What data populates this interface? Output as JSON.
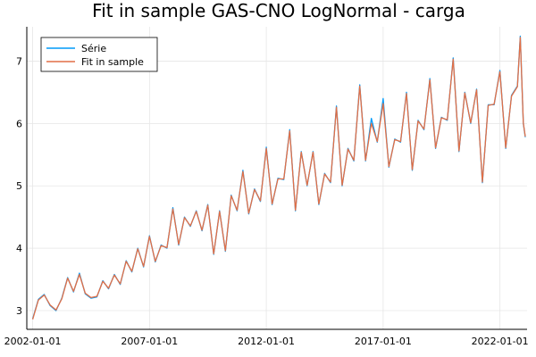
{
  "chart_data": {
    "type": "line",
    "title": "Fit in sample GAS-CNO LogNormal - carga",
    "xlabel": "",
    "ylabel": "",
    "x_range": [
      "2001-10-01",
      "2023-03-01"
    ],
    "ylim": [
      2.7,
      7.55
    ],
    "x_ticks": [
      "2002-01-01",
      "2007-01-01",
      "2012-01-01",
      "2017-01-01",
      "2022-01-01"
    ],
    "y_ticks": [
      3,
      4,
      5,
      6,
      7
    ],
    "grid": true,
    "legend_position": "top-left",
    "series": [
      {
        "name": "Série",
        "color": "#009af9",
        "points": [
          [
            "2002-01-01",
            2.87
          ],
          [
            "2002-04-01",
            3.18
          ],
          [
            "2002-07-01",
            3.26
          ],
          [
            "2002-10-01",
            3.08
          ],
          [
            "2003-01-01",
            3.0
          ],
          [
            "2003-04-01",
            3.2
          ],
          [
            "2003-07-01",
            3.53
          ],
          [
            "2003-10-01",
            3.3
          ],
          [
            "2004-01-01",
            3.6
          ],
          [
            "2004-04-01",
            3.27
          ],
          [
            "2004-07-01",
            3.2
          ],
          [
            "2004-10-01",
            3.22
          ],
          [
            "2005-01-01",
            3.48
          ],
          [
            "2005-04-01",
            3.35
          ],
          [
            "2005-07-01",
            3.58
          ],
          [
            "2005-10-01",
            3.42
          ],
          [
            "2006-01-01",
            3.8
          ],
          [
            "2006-04-01",
            3.62
          ],
          [
            "2006-07-01",
            4.0
          ],
          [
            "2006-10-01",
            3.7
          ],
          [
            "2007-01-01",
            4.2
          ],
          [
            "2007-04-01",
            3.78
          ],
          [
            "2007-07-01",
            4.05
          ],
          [
            "2007-10-01",
            4.0
          ],
          [
            "2008-01-01",
            4.65
          ],
          [
            "2008-04-01",
            4.05
          ],
          [
            "2008-07-01",
            4.5
          ],
          [
            "2008-10-01",
            4.35
          ],
          [
            "2009-01-01",
            4.6
          ],
          [
            "2009-04-01",
            4.28
          ],
          [
            "2009-07-01",
            4.7
          ],
          [
            "2009-10-01",
            3.9
          ],
          [
            "2010-01-01",
            4.6
          ],
          [
            "2010-04-01",
            3.95
          ],
          [
            "2010-07-01",
            4.85
          ],
          [
            "2010-10-01",
            4.6
          ],
          [
            "2011-01-01",
            5.25
          ],
          [
            "2011-04-01",
            4.55
          ],
          [
            "2011-07-01",
            4.95
          ],
          [
            "2011-10-01",
            4.75
          ],
          [
            "2012-01-01",
            5.62
          ],
          [
            "2012-04-01",
            4.7
          ],
          [
            "2012-07-01",
            5.12
          ],
          [
            "2012-10-01",
            5.1
          ],
          [
            "2013-01-01",
            5.9
          ],
          [
            "2013-04-01",
            4.6
          ],
          [
            "2013-07-01",
            5.55
          ],
          [
            "2013-10-01",
            5.0
          ],
          [
            "2014-01-01",
            5.55
          ],
          [
            "2014-04-01",
            4.7
          ],
          [
            "2014-07-01",
            5.2
          ],
          [
            "2014-10-01",
            5.05
          ],
          [
            "2015-01-01",
            6.28
          ],
          [
            "2015-04-01",
            5.0
          ],
          [
            "2015-07-01",
            5.6
          ],
          [
            "2015-10-01",
            5.4
          ],
          [
            "2016-01-01",
            6.62
          ],
          [
            "2016-04-01",
            5.4
          ],
          [
            "2016-07-01",
            6.08
          ],
          [
            "2016-10-01",
            5.7
          ],
          [
            "2017-01-01",
            6.4
          ],
          [
            "2017-04-01",
            5.3
          ],
          [
            "2017-07-01",
            5.75
          ],
          [
            "2017-10-01",
            5.7
          ],
          [
            "2018-01-01",
            6.5
          ],
          [
            "2018-04-01",
            5.25
          ],
          [
            "2018-07-01",
            6.05
          ],
          [
            "2018-10-01",
            5.9
          ],
          [
            "2019-01-01",
            6.72
          ],
          [
            "2019-04-01",
            5.6
          ],
          [
            "2019-07-01",
            6.1
          ],
          [
            "2019-10-01",
            6.05
          ],
          [
            "2020-01-01",
            7.05
          ],
          [
            "2020-04-01",
            5.55
          ],
          [
            "2020-07-01",
            6.5
          ],
          [
            "2020-10-01",
            6.0
          ],
          [
            "2021-01-01",
            6.55
          ],
          [
            "2021-04-01",
            5.05
          ],
          [
            "2021-07-01",
            6.3
          ],
          [
            "2021-10-01",
            6.3
          ],
          [
            "2022-01-01",
            6.85
          ],
          [
            "2022-04-01",
            5.6
          ],
          [
            "2022-07-01",
            6.45
          ],
          [
            "2022-10-01",
            6.6
          ],
          [
            "2022-11-15",
            7.4
          ],
          [
            "2023-01-01",
            6.0
          ],
          [
            "2023-02-01",
            5.78
          ]
        ]
      },
      {
        "name": "Fit in sample",
        "color": "#e26f46",
        "points": [
          [
            "2002-01-01",
            2.86
          ],
          [
            "2002-04-01",
            3.17
          ],
          [
            "2002-07-01",
            3.25
          ],
          [
            "2002-10-01",
            3.09
          ],
          [
            "2003-01-01",
            3.01
          ],
          [
            "2003-04-01",
            3.19
          ],
          [
            "2003-07-01",
            3.52
          ],
          [
            "2003-10-01",
            3.31
          ],
          [
            "2004-01-01",
            3.58
          ],
          [
            "2004-04-01",
            3.28
          ],
          [
            "2004-07-01",
            3.21
          ],
          [
            "2004-10-01",
            3.23
          ],
          [
            "2005-01-01",
            3.47
          ],
          [
            "2005-04-01",
            3.36
          ],
          [
            "2005-07-01",
            3.57
          ],
          [
            "2005-10-01",
            3.43
          ],
          [
            "2006-01-01",
            3.79
          ],
          [
            "2006-04-01",
            3.63
          ],
          [
            "2006-07-01",
            3.99
          ],
          [
            "2006-10-01",
            3.71
          ],
          [
            "2007-01-01",
            4.19
          ],
          [
            "2007-04-01",
            3.79
          ],
          [
            "2007-07-01",
            4.04
          ],
          [
            "2007-10-01",
            4.01
          ],
          [
            "2008-01-01",
            4.63
          ],
          [
            "2008-04-01",
            4.06
          ],
          [
            "2008-07-01",
            4.49
          ],
          [
            "2008-10-01",
            4.36
          ],
          [
            "2009-01-01",
            4.59
          ],
          [
            "2009-04-01",
            4.29
          ],
          [
            "2009-07-01",
            4.69
          ],
          [
            "2009-10-01",
            3.91
          ],
          [
            "2010-01-01",
            4.59
          ],
          [
            "2010-04-01",
            3.96
          ],
          [
            "2010-07-01",
            4.84
          ],
          [
            "2010-10-01",
            4.61
          ],
          [
            "2011-01-01",
            5.23
          ],
          [
            "2011-04-01",
            4.56
          ],
          [
            "2011-07-01",
            4.94
          ],
          [
            "2011-10-01",
            4.76
          ],
          [
            "2012-01-01",
            5.6
          ],
          [
            "2012-04-01",
            4.71
          ],
          [
            "2012-07-01",
            5.11
          ],
          [
            "2012-10-01",
            5.11
          ],
          [
            "2013-01-01",
            5.88
          ],
          [
            "2013-04-01",
            4.61
          ],
          [
            "2013-07-01",
            5.54
          ],
          [
            "2013-10-01",
            5.01
          ],
          [
            "2014-01-01",
            5.54
          ],
          [
            "2014-04-01",
            4.71
          ],
          [
            "2014-07-01",
            5.19
          ],
          [
            "2014-10-01",
            5.06
          ],
          [
            "2015-01-01",
            6.26
          ],
          [
            "2015-04-01",
            5.01
          ],
          [
            "2015-07-01",
            5.59
          ],
          [
            "2015-10-01",
            5.41
          ],
          [
            "2016-01-01",
            6.6
          ],
          [
            "2016-04-01",
            5.41
          ],
          [
            "2016-07-01",
            6.0
          ],
          [
            "2016-10-01",
            5.71
          ],
          [
            "2017-01-01",
            6.32
          ],
          [
            "2017-04-01",
            5.31
          ],
          [
            "2017-07-01",
            5.74
          ],
          [
            "2017-10-01",
            5.71
          ],
          [
            "2018-01-01",
            6.48
          ],
          [
            "2018-04-01",
            5.26
          ],
          [
            "2018-07-01",
            6.04
          ],
          [
            "2018-10-01",
            5.91
          ],
          [
            "2019-01-01",
            6.7
          ],
          [
            "2019-04-01",
            5.61
          ],
          [
            "2019-07-01",
            6.09
          ],
          [
            "2019-10-01",
            6.06
          ],
          [
            "2020-01-01",
            7.03
          ],
          [
            "2020-04-01",
            5.56
          ],
          [
            "2020-07-01",
            6.49
          ],
          [
            "2020-10-01",
            6.01
          ],
          [
            "2021-01-01",
            6.54
          ],
          [
            "2021-04-01",
            5.06
          ],
          [
            "2021-07-01",
            6.29
          ],
          [
            "2021-10-01",
            6.31
          ],
          [
            "2022-01-01",
            6.83
          ],
          [
            "2022-04-01",
            5.61
          ],
          [
            "2022-07-01",
            6.44
          ],
          [
            "2022-10-01",
            6.59
          ],
          [
            "2022-11-15",
            7.38
          ],
          [
            "2023-01-01",
            6.01
          ],
          [
            "2023-02-01",
            5.79
          ]
        ]
      }
    ]
  }
}
